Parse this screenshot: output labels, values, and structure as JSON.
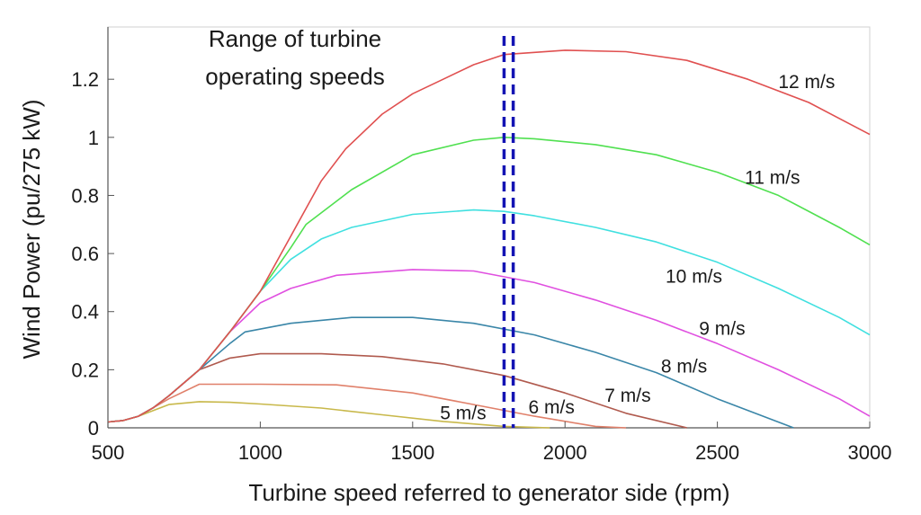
{
  "chart_data": {
    "type": "line",
    "title": "",
    "xlabel": "Turbine speed referred to generator side (rpm)",
    "ylabel": "Wind Power (pu/275 kW)",
    "xlim": [
      500,
      3000
    ],
    "ylim": [
      0,
      1.38
    ],
    "xticks": [
      500,
      1000,
      1500,
      2000,
      2500,
      3000
    ],
    "xtick_labels": [
      "500",
      "1000",
      "1500",
      "2000",
      "2500",
      "3000"
    ],
    "yticks": [
      0,
      0.2,
      0.4,
      0.6,
      0.8,
      1,
      1.2
    ],
    "ytick_labels": [
      "0",
      "0.2",
      "0.4",
      "0.6",
      "0.8",
      "1",
      "1.2"
    ],
    "grid": false,
    "legend": "none",
    "annotation": {
      "line1": "Range of turbine",
      "line2": "operating speeds"
    },
    "operating_speed_markers": {
      "x": [
        1800,
        1830
      ],
      "color": "#1414b4",
      "style": "dashed"
    },
    "series": [
      {
        "name": "5 m/s",
        "color": "#c8b84a",
        "x": [
          500,
          550,
          600,
          650,
          700,
          800,
          900,
          1000,
          1200,
          1400,
          1600,
          1800,
          1950
        ],
        "y": [
          0.02,
          0.025,
          0.04,
          0.06,
          0.08,
          0.09,
          0.088,
          0.082,
          0.068,
          0.045,
          0.022,
          0.005,
          0
        ]
      },
      {
        "name": "6 m/s",
        "color": "#e0806a",
        "x": [
          500,
          550,
          600,
          650,
          700,
          800,
          1000,
          1250,
          1500,
          1700,
          1900,
          2100,
          2200
        ],
        "y": [
          0.02,
          0.025,
          0.04,
          0.07,
          0.1,
          0.15,
          0.15,
          0.148,
          0.12,
          0.08,
          0.04,
          0.005,
          0
        ]
      },
      {
        "name": "7 m/s",
        "color": "#b05a4e",
        "x": [
          500,
          550,
          600,
          650,
          700,
          800,
          900,
          1000,
          1200,
          1400,
          1600,
          1800,
          2000,
          2200,
          2400
        ],
        "y": [
          0.02,
          0.025,
          0.04,
          0.07,
          0.11,
          0.2,
          0.24,
          0.255,
          0.255,
          0.245,
          0.22,
          0.18,
          0.12,
          0.05,
          0
        ]
      },
      {
        "name": "8 m/s",
        "color": "#3a86a8",
        "x": [
          500,
          550,
          600,
          650,
          700,
          800,
          900,
          950,
          1100,
          1300,
          1500,
          1700,
          1900,
          2100,
          2300,
          2500,
          2750
        ],
        "y": [
          0.02,
          0.025,
          0.04,
          0.07,
          0.11,
          0.2,
          0.29,
          0.33,
          0.36,
          0.38,
          0.38,
          0.36,
          0.32,
          0.26,
          0.19,
          0.1,
          0
        ]
      },
      {
        "name": "9 m/s",
        "color": "#e050e0",
        "x": [
          500,
          550,
          600,
          650,
          700,
          800,
          900,
          1000,
          1100,
          1250,
          1500,
          1700,
          1900,
          2100,
          2300,
          2500,
          2700,
          2900,
          3000
        ],
        "y": [
          0.02,
          0.025,
          0.04,
          0.07,
          0.11,
          0.2,
          0.33,
          0.43,
          0.48,
          0.525,
          0.545,
          0.54,
          0.5,
          0.44,
          0.37,
          0.29,
          0.2,
          0.1,
          0.04
        ]
      },
      {
        "name": "10 m/s",
        "color": "#40e0e0",
        "x": [
          500,
          550,
          600,
          650,
          700,
          800,
          900,
          1000,
          1100,
          1200,
          1300,
          1500,
          1700,
          1800,
          1900,
          2100,
          2300,
          2500,
          2700,
          2900,
          3000
        ],
        "y": [
          0.02,
          0.025,
          0.04,
          0.07,
          0.11,
          0.2,
          0.33,
          0.47,
          0.58,
          0.65,
          0.69,
          0.735,
          0.75,
          0.745,
          0.73,
          0.69,
          0.64,
          0.57,
          0.48,
          0.38,
          0.32
        ]
      },
      {
        "name": "11 m/s",
        "color": "#50e050",
        "x": [
          500,
          550,
          600,
          650,
          700,
          800,
          900,
          1000,
          1100,
          1150,
          1300,
          1500,
          1700,
          1800,
          1900,
          2100,
          2300,
          2500,
          2700,
          2900,
          3000
        ],
        "y": [
          0.02,
          0.025,
          0.04,
          0.07,
          0.11,
          0.2,
          0.33,
          0.47,
          0.62,
          0.7,
          0.82,
          0.94,
          0.99,
          1.0,
          0.995,
          0.975,
          0.94,
          0.88,
          0.8,
          0.69,
          0.63
        ]
      },
      {
        "name": "12 m/s",
        "color": "#e05050",
        "x": [
          500,
          550,
          600,
          650,
          700,
          800,
          900,
          1000,
          1100,
          1200,
          1280,
          1400,
          1500,
          1600,
          1700,
          1800,
          2000,
          2200,
          2400,
          2600,
          2800,
          3000
        ],
        "y": [
          0.02,
          0.025,
          0.04,
          0.07,
          0.11,
          0.2,
          0.33,
          0.47,
          0.66,
          0.85,
          0.96,
          1.08,
          1.15,
          1.2,
          1.25,
          1.285,
          1.3,
          1.295,
          1.265,
          1.2,
          1.12,
          1.01
        ]
      }
    ]
  }
}
